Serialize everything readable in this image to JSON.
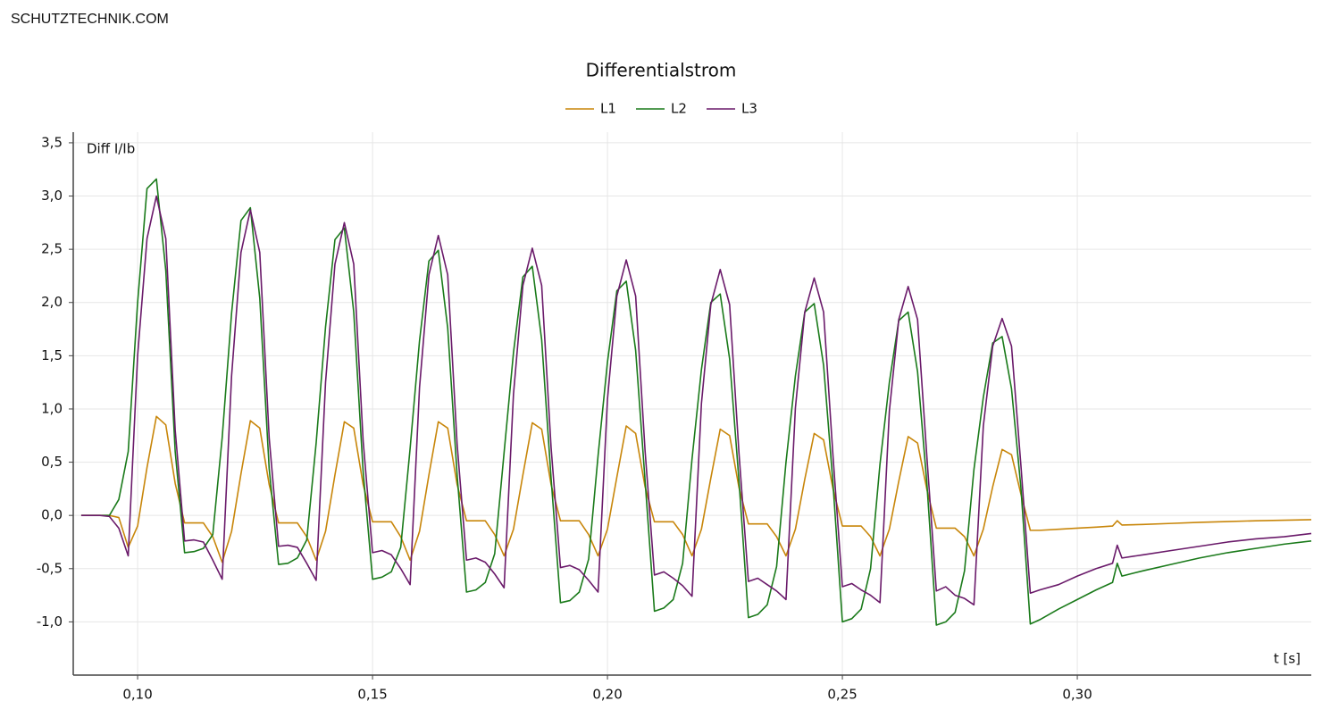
{
  "watermark": "SCHUTZTECHNIK.COM",
  "chart_data": {
    "type": "line",
    "title": "Differentialstrom",
    "y_label": "Diff I/Ib",
    "x_label": "t [s]",
    "grid": true,
    "legend": "top",
    "xlim": [
      0.0863,
      0.3498
    ],
    "ylim": [
      -1.5,
      3.6
    ],
    "xticks": [
      {
        "value": 0.1,
        "label": "0,10"
      },
      {
        "value": 0.15,
        "label": "0,15"
      },
      {
        "value": 0.2,
        "label": "0,20"
      },
      {
        "value": 0.25,
        "label": "0,25"
      },
      {
        "value": 0.3,
        "label": "0,30"
      }
    ],
    "yticks": [
      {
        "value": -1,
        "label": "-1,0"
      },
      {
        "value": -0.5,
        "label": "-0,5"
      },
      {
        "value": 0,
        "label": "0,0"
      },
      {
        "value": 0.5,
        "label": "0,5"
      },
      {
        "value": 1,
        "label": "1,0"
      },
      {
        "value": 1.5,
        "label": "1,5"
      },
      {
        "value": 2,
        "label": "2,0"
      },
      {
        "value": 2.5,
        "label": "2,5"
      },
      {
        "value": 3,
        "label": "3,0"
      },
      {
        "value": 3.5,
        "label": "3,5"
      }
    ],
    "x": [
      0.088,
      0.09,
      0.092,
      0.094,
      0.096,
      0.098,
      0.1,
      0.102,
      0.104,
      0.106,
      0.108,
      0.11,
      0.112,
      0.114,
      0.116,
      0.118,
      0.12,
      0.122,
      0.124,
      0.126,
      0.128,
      0.13,
      0.132,
      0.134,
      0.136,
      0.138,
      0.14,
      0.142,
      0.144,
      0.146,
      0.148,
      0.15,
      0.152,
      0.154,
      0.156,
      0.158,
      0.16,
      0.162,
      0.164,
      0.166,
      0.168,
      0.17,
      0.172,
      0.174,
      0.176,
      0.178,
      0.18,
      0.182,
      0.184,
      0.186,
      0.188,
      0.19,
      0.192,
      0.194,
      0.196,
      0.198,
      0.2,
      0.202,
      0.204,
      0.206,
      0.208,
      0.21,
      0.212,
      0.214,
      0.216,
      0.218,
      0.22,
      0.222,
      0.224,
      0.226,
      0.228,
      0.23,
      0.232,
      0.234,
      0.236,
      0.238,
      0.24,
      0.242,
      0.244,
      0.246,
      0.248,
      0.25,
      0.252,
      0.254,
      0.256,
      0.258,
      0.26,
      0.262,
      0.264,
      0.266,
      0.268,
      0.27,
      0.272,
      0.274,
      0.276,
      0.278,
      0.28,
      0.282,
      0.284,
      0.286,
      0.288,
      0.29,
      0.292,
      0.296,
      0.3,
      0.304,
      0.3075,
      0.3085,
      0.3095,
      0.314,
      0.32,
      0.326,
      0.332,
      0.338,
      0.344,
      0.3498
    ],
    "series": [
      {
        "name": "L1",
        "color": "#c8860a",
        "values": [
          0,
          0,
          0,
          0,
          -0.02,
          -0.3,
          -0.1,
          0.45,
          0.93,
          0.85,
          0.3,
          -0.07,
          -0.07,
          -0.07,
          -0.2,
          -0.44,
          -0.15,
          0.39,
          0.89,
          0.82,
          0.29,
          -0.07,
          -0.07,
          -0.07,
          -0.2,
          -0.42,
          -0.15,
          0.38,
          0.88,
          0.82,
          0.29,
          -0.06,
          -0.06,
          -0.06,
          -0.2,
          -0.42,
          -0.15,
          0.38,
          0.88,
          0.82,
          0.29,
          -0.05,
          -0.05,
          -0.05,
          -0.18,
          -0.38,
          -0.13,
          0.38,
          0.87,
          0.81,
          0.29,
          -0.05,
          -0.05,
          -0.05,
          -0.18,
          -0.38,
          -0.13,
          0.36,
          0.84,
          0.77,
          0.27,
          -0.06,
          -0.06,
          -0.06,
          -0.18,
          -0.38,
          -0.13,
          0.35,
          0.81,
          0.75,
          0.26,
          -0.08,
          -0.08,
          -0.08,
          -0.2,
          -0.38,
          -0.13,
          0.34,
          0.77,
          0.71,
          0.25,
          -0.1,
          -0.1,
          -0.1,
          -0.2,
          -0.38,
          -0.13,
          0.32,
          0.74,
          0.68,
          0.24,
          -0.12,
          -0.12,
          -0.12,
          -0.2,
          -0.38,
          -0.13,
          0.27,
          0.62,
          0.57,
          0.2,
          -0.14,
          -0.14,
          -0.13,
          -0.12,
          -0.11,
          -0.1,
          -0.05,
          -0.09,
          -0.085,
          -0.075,
          -0.065,
          -0.058,
          -0.05,
          -0.045,
          -0.04
        ]
      },
      {
        "name": "L2",
        "color": "#1a7a1a",
        "values": [
          0,
          0,
          0,
          0,
          0.15,
          0.6,
          2.0,
          3.07,
          3.16,
          2.3,
          0.6,
          -0.35,
          -0.34,
          -0.31,
          -0.18,
          0.73,
          1.9,
          2.77,
          2.89,
          2.04,
          0.44,
          -0.46,
          -0.45,
          -0.4,
          -0.23,
          0.68,
          1.77,
          2.59,
          2.7,
          1.91,
          0.41,
          -0.6,
          -0.58,
          -0.53,
          -0.3,
          0.63,
          1.64,
          2.39,
          2.49,
          1.76,
          0.38,
          -0.72,
          -0.7,
          -0.63,
          -0.36,
          0.59,
          1.53,
          2.24,
          2.34,
          1.65,
          0.35,
          -0.82,
          -0.8,
          -0.72,
          -0.41,
          0.56,
          1.44,
          2.11,
          2.2,
          1.55,
          0.33,
          -0.9,
          -0.87,
          -0.79,
          -0.45,
          0.53,
          1.37,
          2.0,
          2.08,
          1.47,
          0.32,
          -0.96,
          -0.93,
          -0.84,
          -0.48,
          0.5,
          1.31,
          1.91,
          1.99,
          1.41,
          0.3,
          -1.0,
          -0.97,
          -0.88,
          -0.5,
          0.48,
          1.25,
          1.83,
          1.91,
          1.35,
          0.29,
          -1.03,
          -1.0,
          -0.91,
          -0.52,
          0.43,
          1.11,
          1.62,
          1.68,
          1.19,
          0.26,
          -1.02,
          -0.98,
          -0.88,
          -0.79,
          -0.7,
          -0.63,
          -0.45,
          -0.57,
          -0.52,
          -0.46,
          -0.4,
          -0.35,
          -0.31,
          -0.27,
          -0.24
        ]
      },
      {
        "name": "L3",
        "color": "#6a1a6a",
        "values": [
          0,
          0,
          0,
          -0.01,
          -0.12,
          -0.38,
          1.5,
          2.6,
          3.0,
          2.6,
          0.8,
          -0.24,
          -0.23,
          -0.25,
          -0.42,
          -0.6,
          1.31,
          2.47,
          2.87,
          2.47,
          0.73,
          -0.29,
          -0.28,
          -0.3,
          -0.45,
          -0.61,
          1.25,
          2.36,
          2.75,
          2.36,
          0.7,
          -0.35,
          -0.33,
          -0.37,
          -0.5,
          -0.65,
          1.2,
          2.26,
          2.63,
          2.26,
          0.67,
          -0.42,
          -0.4,
          -0.44,
          -0.55,
          -0.68,
          1.14,
          2.16,
          2.51,
          2.16,
          0.64,
          -0.49,
          -0.47,
          -0.51,
          -0.61,
          -0.72,
          1.09,
          2.06,
          2.4,
          2.06,
          0.61,
          -0.56,
          -0.53,
          -0.59,
          -0.66,
          -0.76,
          1.05,
          1.98,
          2.31,
          1.98,
          0.58,
          -0.62,
          -0.59,
          -0.65,
          -0.71,
          -0.79,
          1.01,
          1.91,
          2.23,
          1.91,
          0.56,
          -0.67,
          -0.64,
          -0.7,
          -0.75,
          -0.82,
          0.98,
          1.84,
          2.15,
          1.84,
          0.54,
          -0.71,
          -0.67,
          -0.75,
          -0.78,
          -0.84,
          0.84,
          1.59,
          1.85,
          1.59,
          0.47,
          -0.73,
          -0.7,
          -0.65,
          -0.57,
          -0.5,
          -0.45,
          -0.28,
          -0.4,
          -0.37,
          -0.33,
          -0.29,
          -0.25,
          -0.22,
          -0.2,
          -0.17
        ]
      }
    ]
  }
}
